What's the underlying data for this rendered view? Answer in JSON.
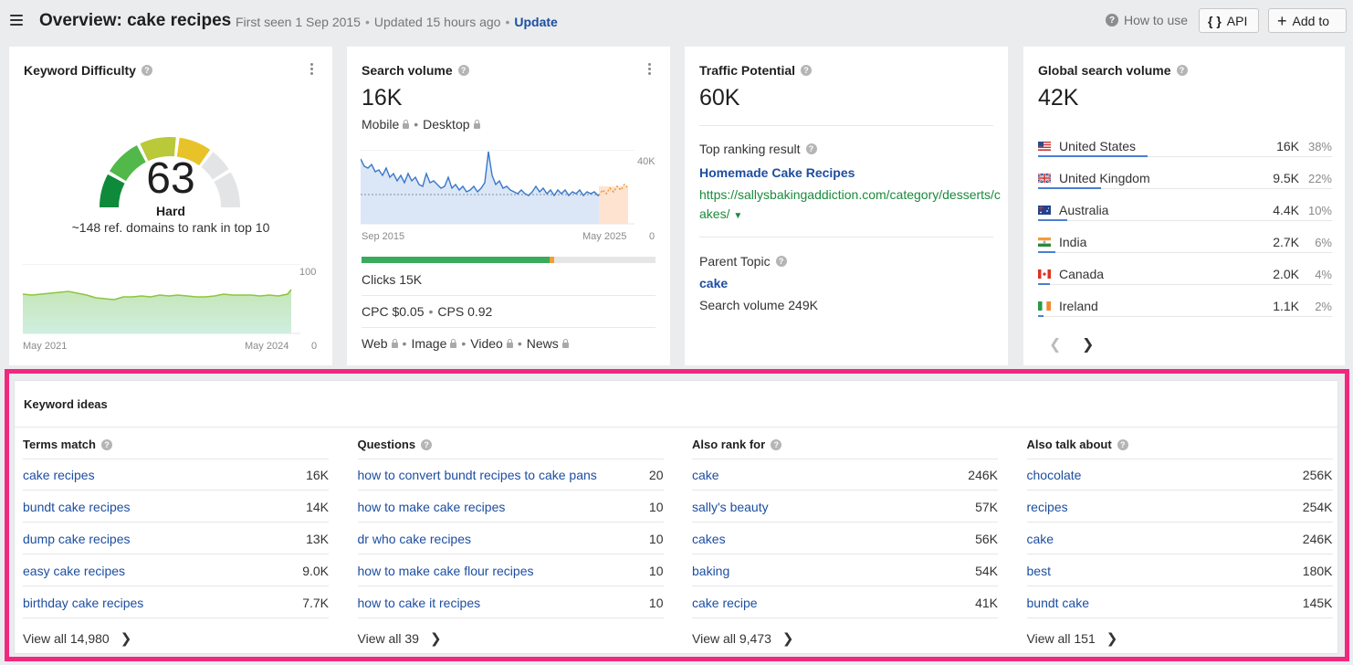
{
  "header": {
    "title": "Overview: cake recipes",
    "first_seen": "First seen 1 Sep 2015",
    "updated": "Updated 15 hours ago",
    "update_link": "Update",
    "how_to_use": "How to use",
    "api_label": "API",
    "add_to_label": "Add to"
  },
  "kd": {
    "title": "Keyword Difficulty",
    "value": "63",
    "label": "Hard",
    "subtitle": "~148 ref. domains to rank in top 10",
    "chart_x_start": "May 2021",
    "chart_x_end": "May 2024",
    "chart_y_max": "100",
    "chart_y_min": "0"
  },
  "search_volume": {
    "title": "Search volume",
    "value": "16K",
    "mobile": "Mobile",
    "desktop": "Desktop",
    "chart_y_max": "40K",
    "chart_y_min": "0",
    "chart_x_start": "Sep 2015",
    "chart_x_end": "May 2025",
    "organic_share": 0.64,
    "paid_share": 0.015,
    "clicks": "Clicks 15K",
    "cpc": "CPC $0.05",
    "cps": "CPS 0.92",
    "serp_web": "Web",
    "serp_image": "Image",
    "serp_video": "Video",
    "serp_news": "News"
  },
  "traffic_potential": {
    "title": "Traffic Potential",
    "value": "60K",
    "top_result_label": "Top ranking result",
    "top_result_title": "Homemade Cake Recipes",
    "top_result_url": "https://sallysbakingaddiction.com/category/desserts/cakes/",
    "parent_topic_label": "Parent Topic",
    "parent_topic": "cake",
    "parent_sv": "Search volume 249K"
  },
  "global": {
    "title": "Global search volume",
    "value": "42K",
    "countries": [
      {
        "name": "United States",
        "value": "16K",
        "pct": "38%",
        "share": 0.38
      },
      {
        "name": "United Kingdom",
        "value": "9.5K",
        "pct": "22%",
        "share": 0.22
      },
      {
        "name": "Australia",
        "value": "4.4K",
        "pct": "10%",
        "share": 0.1
      },
      {
        "name": "India",
        "value": "2.7K",
        "pct": "6%",
        "share": 0.06
      },
      {
        "name": "Canada",
        "value": "2.0K",
        "pct": "4%",
        "share": 0.04
      },
      {
        "name": "Ireland",
        "value": "1.1K",
        "pct": "2%",
        "share": 0.02
      }
    ]
  },
  "ideas": {
    "title": "Keyword ideas",
    "columns": [
      {
        "heading": "Terms match",
        "rows": [
          {
            "kw": "cake recipes",
            "v": "16K"
          },
          {
            "kw": "bundt cake recipes",
            "v": "14K"
          },
          {
            "kw": "dump cake recipes",
            "v": "13K"
          },
          {
            "kw": "easy cake recipes",
            "v": "9.0K"
          },
          {
            "kw": "birthday cake recipes",
            "v": "7.7K"
          }
        ],
        "view_all": "View all 14,980"
      },
      {
        "heading": "Questions",
        "rows": [
          {
            "kw": "how to convert bundt recipes to cake pans",
            "v": "20"
          },
          {
            "kw": "how to make cake recipes",
            "v": "10"
          },
          {
            "kw": "dr who cake recipes",
            "v": "10"
          },
          {
            "kw": "how to make cake flour recipes",
            "v": "10"
          },
          {
            "kw": "how to cake it recipes",
            "v": "10"
          }
        ],
        "view_all": "View all 39"
      },
      {
        "heading": "Also rank for",
        "rows": [
          {
            "kw": "cake",
            "v": "246K"
          },
          {
            "kw": "sally's beauty",
            "v": "57K"
          },
          {
            "kw": "cakes",
            "v": "56K"
          },
          {
            "kw": "baking",
            "v": "54K"
          },
          {
            "kw": "cake recipe",
            "v": "41K"
          }
        ],
        "view_all": "View all 9,473"
      },
      {
        "heading": "Also talk about",
        "rows": [
          {
            "kw": "chocolate",
            "v": "256K"
          },
          {
            "kw": "recipes",
            "v": "254K"
          },
          {
            "kw": "cake",
            "v": "246K"
          },
          {
            "kw": "best",
            "v": "180K"
          },
          {
            "kw": "bundt cake",
            "v": "145K"
          }
        ],
        "view_all": "View all 151"
      }
    ]
  },
  "colors": {
    "link": "#1d4ea1",
    "url_green": "#1a8a3b",
    "highlight": "#f0287f",
    "bar_blue": "#4a7fd0"
  }
}
